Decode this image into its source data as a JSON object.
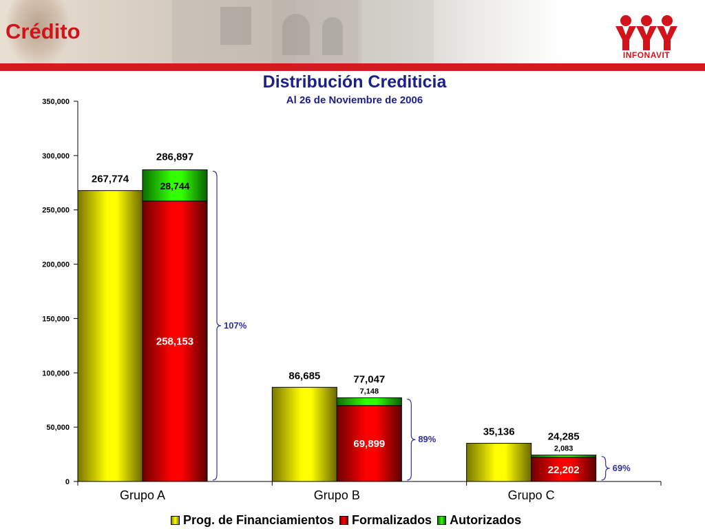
{
  "header": {
    "title": "Crédito",
    "logo_text": "INFONAVIT",
    "colors": {
      "brand_red": "#d6181f",
      "title_blue": "#1b1f8a"
    }
  },
  "chart_data": {
    "type": "bar",
    "title": "Distribución Crediticia",
    "subtitle": "Al 26 de Noviembre de 2006",
    "xlabel": "",
    "ylabel": "",
    "ylim": [
      0,
      350000
    ],
    "yticks": [
      "0",
      "50,000",
      "100,000",
      "150,000",
      "200,000",
      "250,000",
      "300,000",
      "350,000"
    ],
    "categories": [
      "Grupo A",
      "Grupo B",
      "Grupo C"
    ],
    "grid": false,
    "legend_position": "bottom",
    "series": [
      {
        "name": "Prog. de Financiamientos",
        "values": [
          267774,
          86685,
          35136
        ],
        "labels": [
          "267,774",
          "86,685",
          "35,136"
        ],
        "color": "#f4f000"
      },
      {
        "name": "Formalizados",
        "values": [
          258153,
          69899,
          22202
        ],
        "labels": [
          "258,153",
          "69,899",
          "22,202"
        ],
        "color": "#e0000b",
        "stack": "b"
      },
      {
        "name": "Autorizados",
        "values": [
          28744,
          7148,
          2083
        ],
        "labels": [
          "28,744",
          "7,148",
          "2,083"
        ],
        "color": "#22dd00",
        "stack": "b"
      }
    ],
    "stack_totals": [
      "286,897",
      "77,047",
      "24,285"
    ],
    "ratios": [
      "107%",
      "89%",
      "69%"
    ]
  }
}
